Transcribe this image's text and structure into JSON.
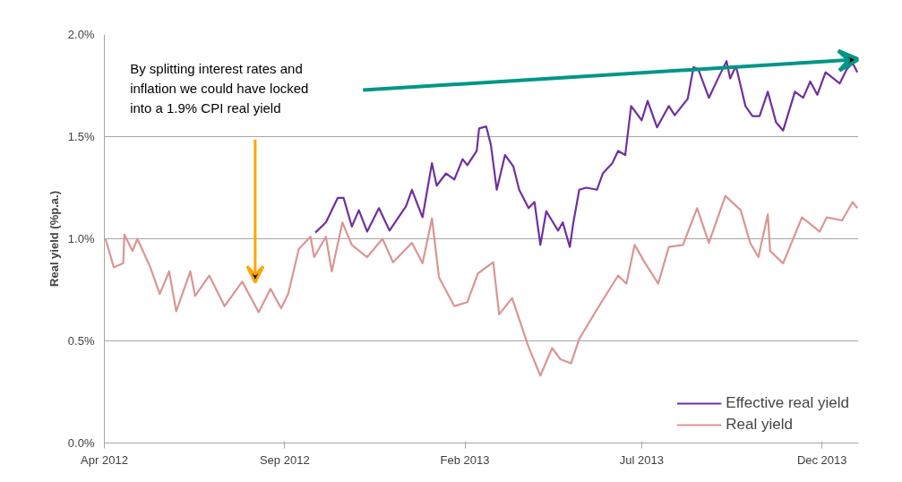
{
  "chart_data": {
    "type": "line",
    "ylabel": "Real yield (%p.a.)",
    "ylim": [
      0,
      2.0
    ],
    "yticks": [
      {
        "value": 0,
        "label": "0.0%"
      },
      {
        "value": 0.5,
        "label": "0.5%"
      },
      {
        "value": 1.0,
        "label": "1.0%"
      },
      {
        "value": 1.5,
        "label": "1.5%"
      },
      {
        "value": 2.0,
        "label": "2.0%"
      }
    ],
    "xlim": [
      "2012-04-01",
      "2014-01-01"
    ],
    "xticks": [
      {
        "value": "2012-04-01",
        "label": "Apr 2012"
      },
      {
        "value": "2012-09-01",
        "label": "Sep 2012"
      },
      {
        "value": "2013-02-01",
        "label": "Feb 2013"
      },
      {
        "value": "2013-07-01",
        "label": "Jul 2013"
      },
      {
        "value": "2013-12-01",
        "label": "Dec 2013"
      }
    ],
    "grid": "y",
    "legend": "bottom right",
    "marker": "none",
    "line_style": "solid",
    "annotations": [
      "By splitting interest rates and inflation we could have locked into a 1.9% CPI real yield"
    ],
    "series": [
      {
        "name": "Effective real yield",
        "color": "#7030a0",
        "x": [
          "2012-09-27",
          "2012-10-06",
          "2012-10-16",
          "2012-10-21",
          "2012-10-28",
          "2012-11-03",
          "2012-11-10",
          "2012-11-20",
          "2012-11-29",
          "2012-12-13",
          "2012-12-18",
          "2012-12-27",
          "2013-01-04",
          "2013-01-08",
          "2013-01-16",
          "2013-01-23",
          "2013-01-30",
          "2013-02-03",
          "2013-02-11",
          "2013-02-13",
          "2013-02-19",
          "2013-02-23",
          "2013-02-28",
          "2013-03-07",
          "2013-03-14",
          "2013-03-19",
          "2013-03-27",
          "2013-04-01",
          "2013-04-06",
          "2013-04-11",
          "2013-04-21",
          "2013-04-25",
          "2013-05-01",
          "2013-05-04",
          "2013-05-09",
          "2013-05-15",
          "2013-05-24",
          "2013-05-29",
          "2013-06-06",
          "2013-06-11",
          "2013-06-17",
          "2013-06-22",
          "2013-07-01",
          "2013-07-06",
          "2013-07-14",
          "2013-07-24",
          "2013-07-29",
          "2013-08-09",
          "2013-08-14",
          "2013-08-18",
          "2013-08-27",
          "2013-09-05",
          "2013-09-11",
          "2013-09-14",
          "2013-09-19",
          "2013-09-27",
          "2013-10-03",
          "2013-10-09",
          "2013-10-16",
          "2013-10-23",
          "2013-10-29",
          "2013-11-08",
          "2013-11-15",
          "2013-11-21",
          "2013-11-27",
          "2013-12-04",
          "2013-12-16",
          "2013-12-22",
          "2013-12-27",
          "2013-12-31"
        ],
        "values": [
          1.03,
          1.08,
          1.2,
          1.2,
          1.06,
          1.14,
          1.035,
          1.15,
          1.04,
          1.16,
          1.24,
          1.105,
          1.37,
          1.26,
          1.32,
          1.29,
          1.39,
          1.36,
          1.43,
          1.54,
          1.55,
          1.46,
          1.24,
          1.41,
          1.355,
          1.24,
          1.15,
          1.18,
          0.97,
          1.135,
          1.04,
          1.08,
          0.96,
          1.08,
          1.24,
          1.25,
          1.24,
          1.32,
          1.37,
          1.43,
          1.41,
          1.65,
          1.58,
          1.675,
          1.545,
          1.65,
          1.605,
          1.685,
          1.84,
          1.83,
          1.69,
          1.8,
          1.87,
          1.785,
          1.845,
          1.65,
          1.6,
          1.6,
          1.72,
          1.57,
          1.53,
          1.72,
          1.69,
          1.77,
          1.705,
          1.815,
          1.76,
          1.83,
          1.86,
          1.815
        ]
      },
      {
        "name": "Real yield",
        "color": "#d99694",
        "x": [
          "2012-04-02",
          "2012-04-09",
          "2012-04-17",
          "2012-04-18",
          "2012-04-25",
          "2012-04-29",
          "2012-05-10",
          "2012-05-18",
          "2012-05-26",
          "2012-06-01",
          "2012-06-13",
          "2012-06-17",
          "2012-06-29",
          "2012-07-12",
          "2012-07-27",
          "2012-08-10",
          "2012-08-20",
          "2012-08-29",
          "2012-09-04",
          "2012-09-13",
          "2012-09-23",
          "2012-09-26",
          "2012-10-06",
          "2012-10-11",
          "2012-10-20",
          "2012-10-28",
          "2012-11-10",
          "2012-11-23",
          "2012-12-02",
          "2012-12-18",
          "2012-12-27",
          "2013-01-04",
          "2013-01-10",
          "2013-01-23",
          "2013-02-03",
          "2013-02-12",
          "2013-02-25",
          "2013-03-02",
          "2013-03-13",
          "2013-03-27",
          "2013-04-06",
          "2013-04-16",
          "2013-04-23",
          "2013-05-02",
          "2013-05-09",
          "2013-05-23",
          "2013-06-11",
          "2013-06-18",
          "2013-06-25",
          "2013-07-04",
          "2013-07-15",
          "2013-07-24",
          "2013-08-05",
          "2013-08-17",
          "2013-08-27",
          "2013-09-10",
          "2013-09-23",
          "2013-10-01",
          "2013-10-08",
          "2013-10-16",
          "2013-10-18",
          "2013-10-29",
          "2013-11-14",
          "2013-11-29",
          "2013-12-05",
          "2013-12-18",
          "2013-12-27",
          "2013-12-31"
        ],
        "values": [
          1.0,
          0.86,
          0.88,
          1.02,
          0.94,
          1.0,
          0.86,
          0.73,
          0.84,
          0.645,
          0.84,
          0.72,
          0.82,
          0.67,
          0.79,
          0.64,
          0.755,
          0.66,
          0.73,
          0.95,
          1.01,
          0.91,
          1.01,
          0.84,
          1.08,
          0.97,
          0.91,
          1.0,
          0.885,
          0.98,
          0.88,
          1.1,
          0.81,
          0.67,
          0.69,
          0.83,
          0.885,
          0.63,
          0.71,
          0.47,
          0.33,
          0.465,
          0.41,
          0.39,
          0.51,
          0.645,
          0.82,
          0.78,
          0.97,
          0.88,
          0.78,
          0.96,
          0.97,
          1.15,
          0.98,
          1.21,
          1.14,
          0.98,
          0.91,
          1.12,
          0.94,
          0.88,
          1.105,
          1.035,
          1.105,
          1.09,
          1.18,
          1.15
        ]
      }
    ]
  }
}
